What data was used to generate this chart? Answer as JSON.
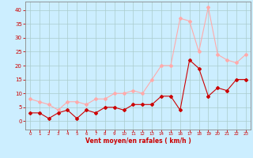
{
  "x": [
    0,
    1,
    2,
    3,
    4,
    5,
    6,
    7,
    8,
    9,
    10,
    11,
    12,
    13,
    14,
    15,
    16,
    17,
    18,
    19,
    20,
    21,
    22,
    23
  ],
  "wind_avg": [
    3,
    3,
    1,
    3,
    4,
    1,
    4,
    3,
    5,
    5,
    4,
    6,
    6,
    6,
    9,
    9,
    4,
    22,
    19,
    9,
    12,
    11,
    15,
    15
  ],
  "wind_gust": [
    8,
    7,
    6,
    4,
    7,
    7,
    6,
    8,
    8,
    10,
    10,
    11,
    10,
    15,
    20,
    20,
    37,
    36,
    25,
    41,
    24,
    22,
    21,
    24
  ],
  "avg_color": "#cc0000",
  "gust_color": "#ffaaaa",
  "bg_color": "#cceeff",
  "grid_color": "#aacccc",
  "xlabel": "Vent moyen/en rafales ( km/h )",
  "ylim": [
    -3,
    43
  ],
  "yticks": [
    0,
    5,
    10,
    15,
    20,
    25,
    30,
    35,
    40
  ],
  "xticks": [
    0,
    1,
    2,
    3,
    4,
    5,
    6,
    7,
    8,
    9,
    10,
    11,
    12,
    13,
    14,
    15,
    16,
    17,
    18,
    19,
    20,
    21,
    22,
    23
  ],
  "markersize": 2.0,
  "linewidth": 0.8,
  "axis_color": "#cc0000",
  "tick_color": "#cc0000",
  "label_color": "#cc0000",
  "spine_color": "#888888"
}
